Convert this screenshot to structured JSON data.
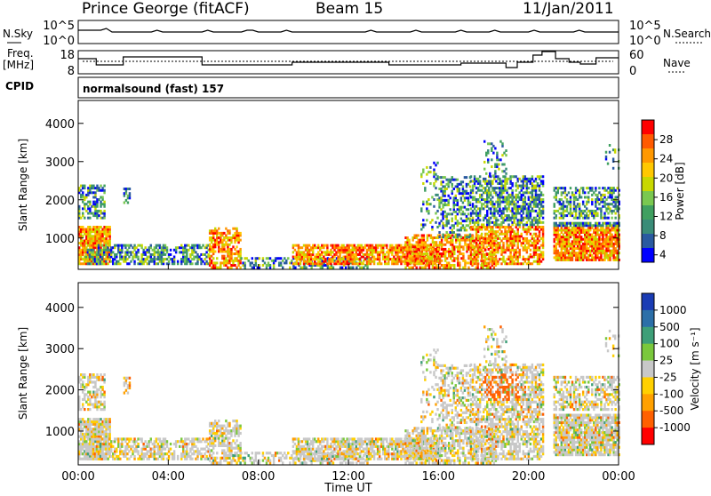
{
  "header": {
    "station": "Prince George (fitACF)",
    "beam": "Beam 15",
    "date": "11/Jan/2011"
  },
  "noise_panel": {
    "left_label": "N.Sky",
    "left_ticks": [
      "10^5",
      "10^0"
    ],
    "right_label": "N.Search",
    "right_ticks": [
      "10^5",
      "10^0"
    ]
  },
  "freq_panel": {
    "left_label_1": "Freq.",
    "left_label_2": "[MHz]",
    "left_ticks": [
      "18",
      "8"
    ],
    "right_label": "Nave",
    "right_ticks": [
      "60",
      "0"
    ]
  },
  "cpid": {
    "label": "CPID",
    "value": "normalsound (fast) 157"
  },
  "chart_data": [
    {
      "type": "heatmap",
      "name": "power",
      "ylabel": "Slant Range [km]",
      "xlabel": "",
      "ylim": [
        180,
        4600
      ],
      "xlim": [
        0,
        24
      ],
      "yticks": [
        "1000",
        "2000",
        "3000",
        "4000"
      ],
      "colorbar": {
        "label": "Power [dB]",
        "ticks": [
          "28",
          "24",
          "20",
          "16",
          "12",
          "8",
          "4"
        ],
        "colors": [
          "#ff0000",
          "#ff5a00",
          "#ff9800",
          "#ffc800",
          "#c8d800",
          "#7ac850",
          "#40a060",
          "#3a8c78",
          "#2a5aa0",
          "#0000ff"
        ]
      }
    },
    {
      "type": "heatmap",
      "name": "velocity",
      "ylabel": "Slant Range [km]",
      "xlabel": "Time UT",
      "ylim": [
        180,
        4600
      ],
      "xlim": [
        0,
        24
      ],
      "yticks": [
        "1000",
        "2000",
        "3000",
        "4000"
      ],
      "xticks": [
        "00:00",
        "04:00",
        "08:00",
        "12:00",
        "16:00",
        "20:00",
        "00:00"
      ],
      "colorbar": {
        "label": "Velocity [m s⁻¹]",
        "ticks": [
          "1000",
          "500",
          "100",
          "25",
          "-25",
          "-100",
          "-500",
          "-1000"
        ],
        "colors": [
          "#1a3cb4",
          "#2c6fa8",
          "#3e9f78",
          "#7ac83c",
          "#c8c8c8",
          "#ffd000",
          "#ffa000",
          "#ff6000",
          "#ff0000"
        ]
      }
    }
  ]
}
